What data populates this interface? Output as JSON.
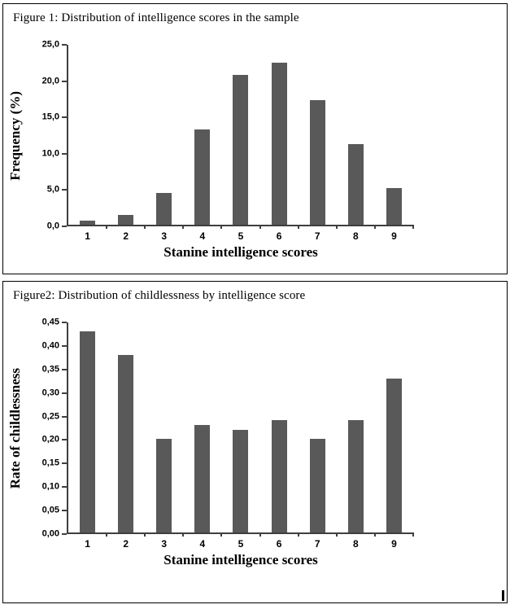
{
  "chart_data": [
    {
      "type": "bar",
      "title": "Figure 1: Distribution of intelligence scores in the sample",
      "categories": [
        "1",
        "2",
        "3",
        "4",
        "5",
        "6",
        "7",
        "8",
        "9"
      ],
      "values": [
        0.6,
        1.4,
        4.4,
        13.2,
        20.8,
        22.5,
        17.3,
        11.2,
        5.1
      ],
      "xlabel": "Stanine intelligence scores",
      "ylabel": "Frequency (%)",
      "ylim": [
        0,
        25
      ],
      "ytick_step": 5,
      "ytick_labels": [
        "0,0",
        "5,0",
        "10,0",
        "15,0",
        "20,0",
        "25,0"
      ],
      "bar_color": "#595959",
      "grid": false,
      "legend": false
    },
    {
      "type": "bar",
      "title": "Figure2: Distribution of childlessness by intelligence score",
      "categories": [
        "1",
        "2",
        "3",
        "4",
        "5",
        "6",
        "7",
        "8",
        "9"
      ],
      "values": [
        0.43,
        0.38,
        0.2,
        0.23,
        0.22,
        0.24,
        0.2,
        0.24,
        0.33
      ],
      "xlabel": "Stanine intelligence scores",
      "ylabel": "Rate of childlessness",
      "ylim": [
        0,
        0.45
      ],
      "ytick_step": 0.05,
      "ytick_labels": [
        "0,00",
        "0,05",
        "0,10",
        "0,15",
        "0,20",
        "0,25",
        "0,30",
        "0,35",
        "0,40",
        "0,45"
      ],
      "bar_color": "#595959",
      "grid": false,
      "legend": false
    }
  ]
}
